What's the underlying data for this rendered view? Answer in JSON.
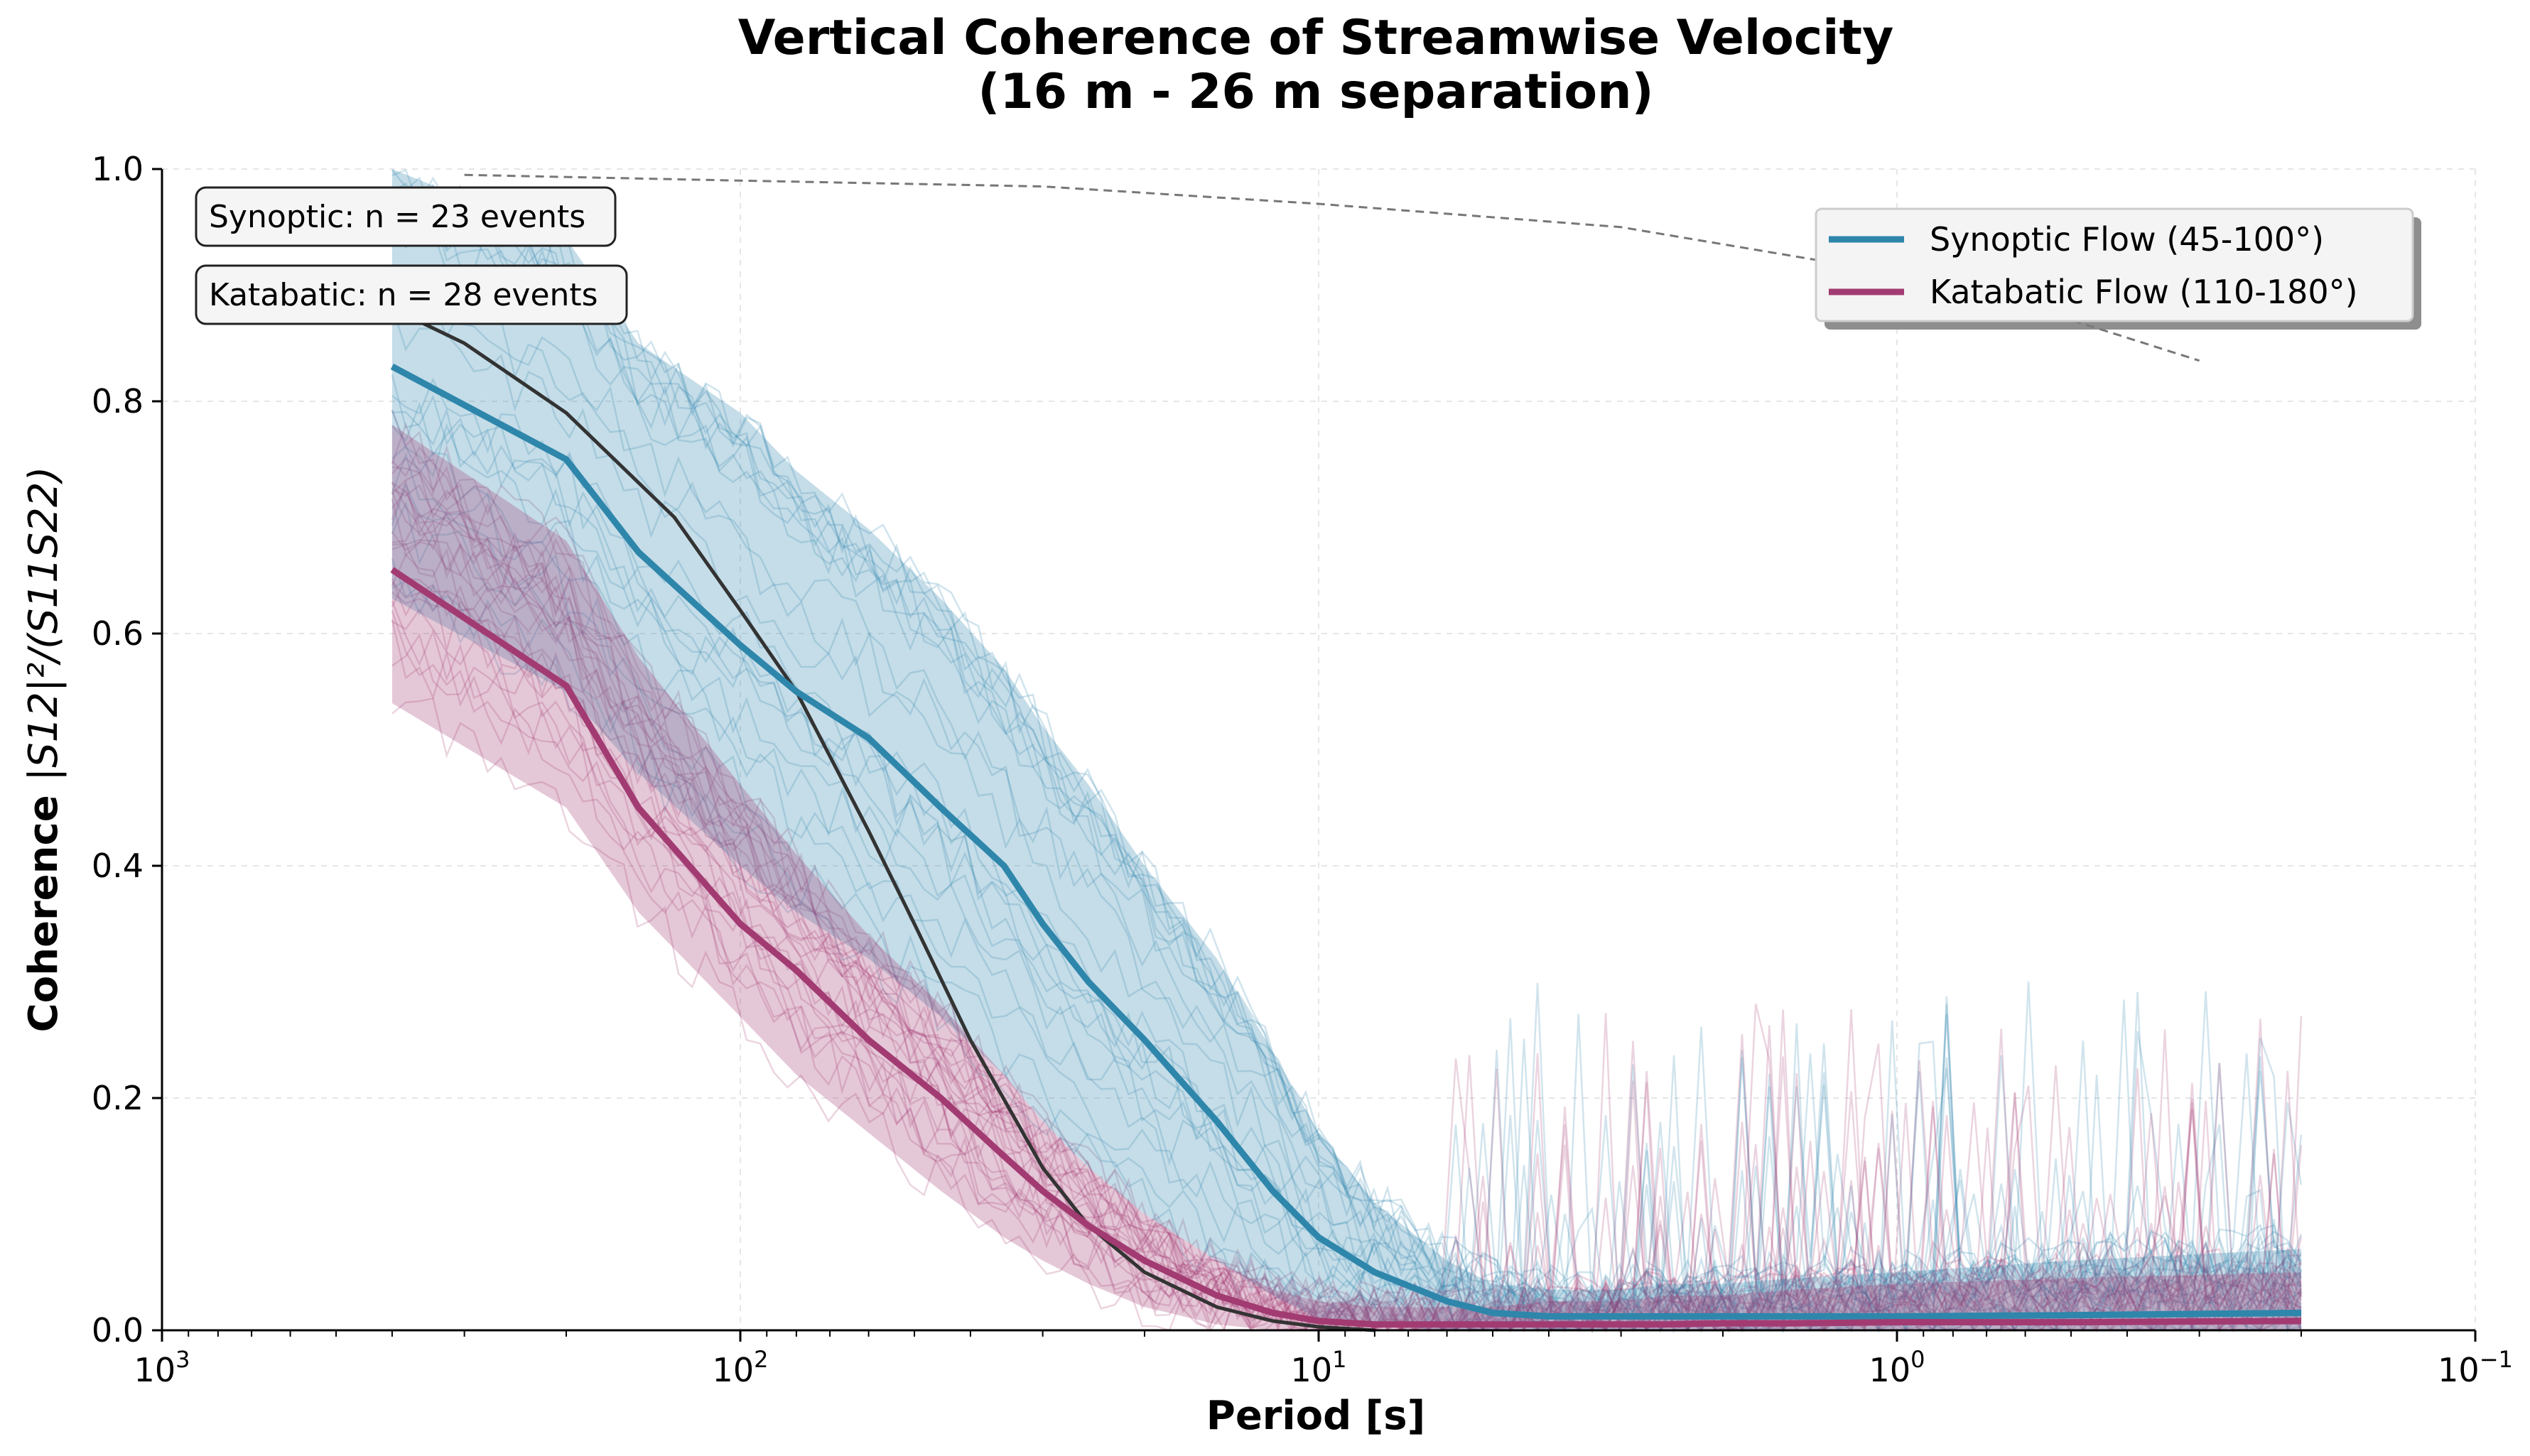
{
  "chart_data": {
    "type": "line",
    "title_line1": "Vertical Coherence of Streamwise Velocity",
    "title_line2": "(16 m - 26 m separation)",
    "xlabel": "Period [s]",
    "ylabel_main": "Coherence ",
    "ylabel_math": "|S12|²/(S11S22)",
    "x_scale": "log",
    "x_reversed": true,
    "xlim": [
      1000,
      0.1
    ],
    "ylim": [
      0,
      1.0
    ],
    "grid": true,
    "x_ticks": [
      {
        "value": 1000,
        "base": "10",
        "exp": "3"
      },
      {
        "value": 100,
        "base": "10",
        "exp": "2"
      },
      {
        "value": 10,
        "base": "10",
        "exp": "1"
      },
      {
        "value": 1,
        "base": "10",
        "exp": "0"
      },
      {
        "value": 0.1,
        "base": "10",
        "exp": "−1"
      }
    ],
    "y_ticks": [
      {
        "value": 0.0,
        "label": "0.0"
      },
      {
        "value": 0.2,
        "label": "0.2"
      },
      {
        "value": 0.4,
        "label": "0.4"
      },
      {
        "value": 0.6,
        "label": "0.6"
      },
      {
        "value": 0.8,
        "label": "0.8"
      },
      {
        "value": 1.0,
        "label": "1.0"
      }
    ],
    "legend_position": "top-right",
    "series": [
      {
        "name": "Synoptic Flow (45-100°)",
        "color": "#2e86ab",
        "period": [
          400,
          200,
          150,
          100,
          80,
          60,
          45,
          35,
          30,
          25,
          20,
          15,
          12,
          10,
          8,
          6,
          5,
          4,
          3.5,
          3,
          2.5,
          2,
          1.5,
          1,
          0.5,
          0.2
        ],
        "mean": [
          0.83,
          0.75,
          0.67,
          0.59,
          0.55,
          0.51,
          0.45,
          0.4,
          0.35,
          0.3,
          0.25,
          0.18,
          0.12,
          0.08,
          0.05,
          0.025,
          0.015,
          0.012,
          0.012,
          0.012,
          0.012,
          0.012,
          0.012,
          0.012,
          0.013,
          0.015
        ],
        "band_low": [
          0.63,
          0.55,
          0.48,
          0.4,
          0.36,
          0.32,
          0.27,
          0.22,
          0.18,
          0.14,
          0.1,
          0.06,
          0.03,
          0.01,
          0.005,
          0.0,
          0.0,
          0.0,
          0.0,
          0.0,
          0.0,
          0.0,
          0.0,
          0.0,
          0.0,
          0.0
        ],
        "band_high": [
          1.0,
          0.94,
          0.85,
          0.79,
          0.74,
          0.69,
          0.63,
          0.57,
          0.52,
          0.47,
          0.4,
          0.32,
          0.24,
          0.17,
          0.11,
          0.06,
          0.04,
          0.035,
          0.035,
          0.035,
          0.04,
          0.04,
          0.045,
          0.05,
          0.06,
          0.07
        ],
        "n_events": 23
      },
      {
        "name": "Katabatic Flow (110-180°)",
        "color": "#a23b72",
        "period": [
          400,
          200,
          150,
          100,
          80,
          60,
          45,
          35,
          30,
          25,
          20,
          15,
          12,
          10,
          8,
          6,
          5,
          4,
          3.5,
          3,
          2.5,
          2,
          1.5,
          1,
          0.5,
          0.2
        ],
        "mean": [
          0.655,
          0.555,
          0.45,
          0.35,
          0.31,
          0.25,
          0.2,
          0.15,
          0.12,
          0.09,
          0.06,
          0.03,
          0.015,
          0.008,
          0.005,
          0.005,
          0.005,
          0.005,
          0.005,
          0.005,
          0.005,
          0.006,
          0.006,
          0.007,
          0.007,
          0.008
        ],
        "band_low": [
          0.54,
          0.45,
          0.36,
          0.27,
          0.22,
          0.17,
          0.12,
          0.08,
          0.06,
          0.04,
          0.02,
          0.005,
          0.0,
          0.0,
          0.0,
          0.0,
          0.0,
          0.0,
          0.0,
          0.0,
          0.0,
          0.0,
          0.0,
          0.0,
          0.0,
          0.0
        ],
        "band_high": [
          0.78,
          0.68,
          0.58,
          0.47,
          0.41,
          0.34,
          0.28,
          0.22,
          0.18,
          0.14,
          0.1,
          0.06,
          0.035,
          0.025,
          0.02,
          0.02,
          0.02,
          0.025,
          0.025,
          0.025,
          0.03,
          0.03,
          0.035,
          0.04,
          0.045,
          0.05
        ],
        "n_events": 28
      }
    ],
    "reference_curves": [
      {
        "style": "solid-dark",
        "color": "#333333",
        "period": [
          400,
          300,
          200,
          130,
          100,
          80,
          60,
          50,
          40,
          30,
          25,
          20,
          15,
          12,
          10,
          8
        ],
        "values": [
          0.88,
          0.85,
          0.79,
          0.7,
          0.62,
          0.55,
          0.43,
          0.35,
          0.25,
          0.14,
          0.09,
          0.05,
          0.02,
          0.008,
          0.003,
          0.0
        ]
      },
      {
        "style": "dashed-gray",
        "color": "#777777",
        "period": [
          300,
          100,
          30,
          10,
          3,
          1,
          0.5,
          0.3
        ],
        "values": [
          0.995,
          0.99,
          0.985,
          0.97,
          0.95,
          0.91,
          0.87,
          0.835
        ]
      }
    ],
    "annotations": [
      {
        "text": "Synoptic: n = 23 events"
      },
      {
        "text": "Katabatic: n = 28 events"
      }
    ]
  }
}
